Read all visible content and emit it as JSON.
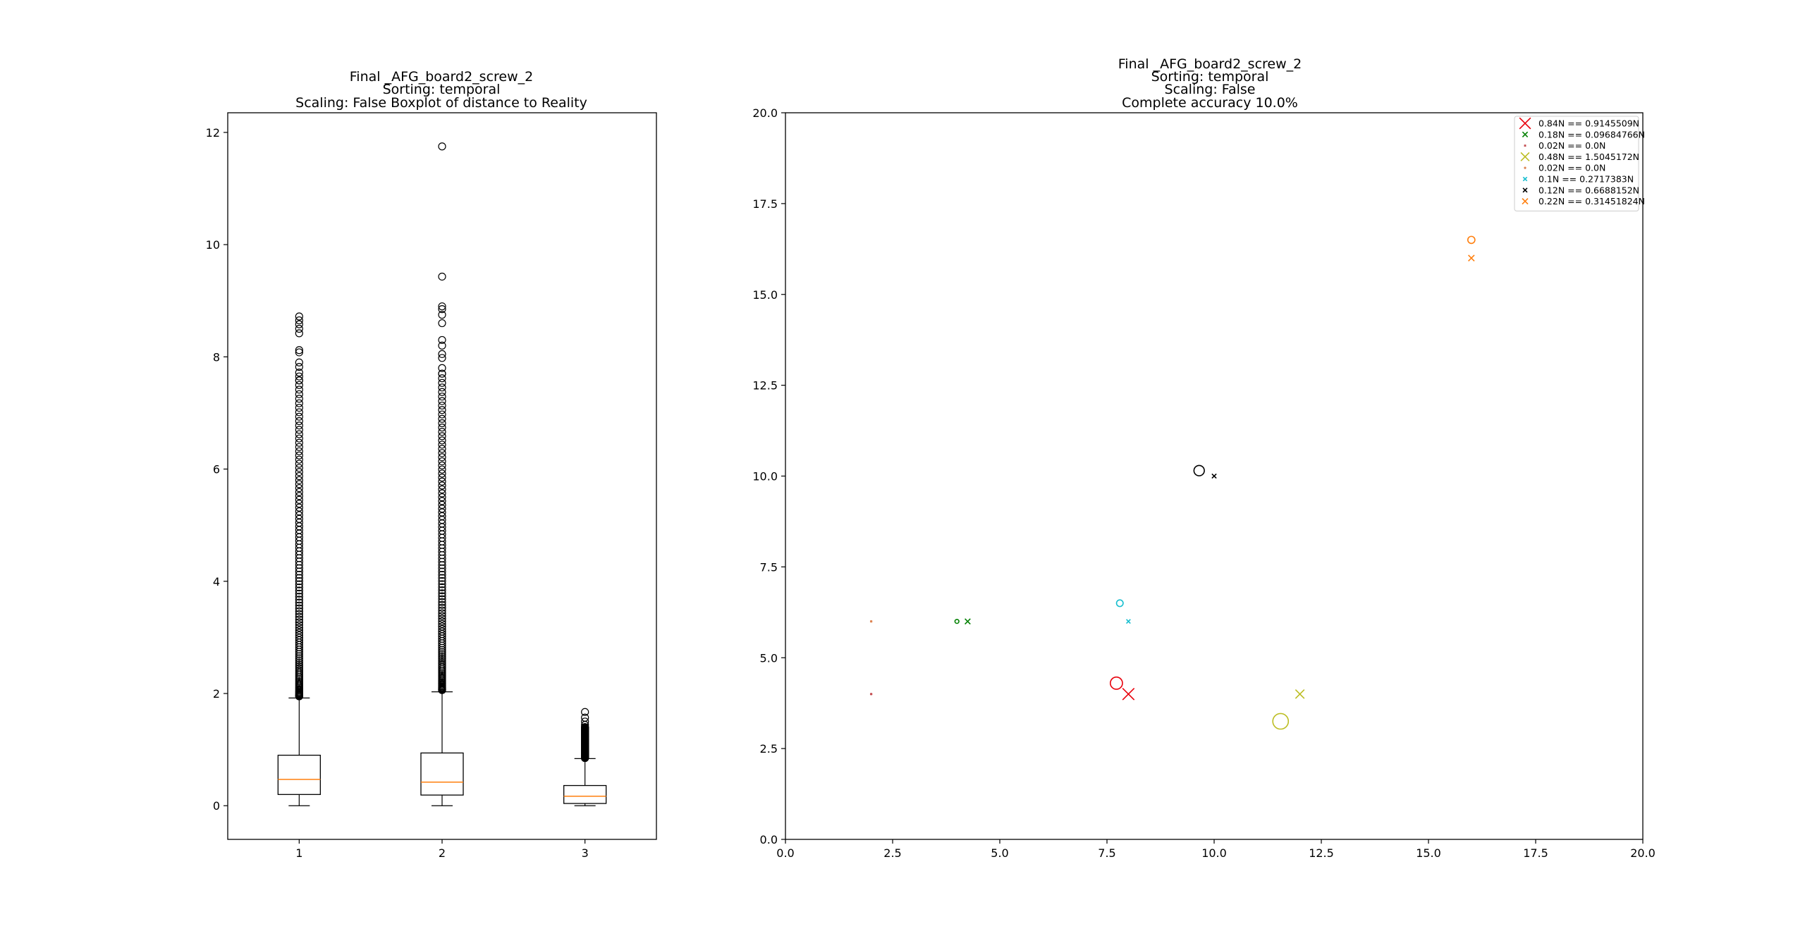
{
  "figure": {
    "background": "#ffffff"
  },
  "chart_data": [
    {
      "type": "boxplot",
      "title_lines": [
        "Final _AFG_board2_screw_2",
        "Sorting: temporal",
        "Scaling: False Boxplot of distance to Reality"
      ],
      "xlabel": "",
      "ylabel": "",
      "categories": [
        "1",
        "2",
        "3"
      ],
      "x_range": [
        0.5,
        3.5
      ],
      "ylim": [
        -0.6,
        12.35
      ],
      "x_ticks": [
        1,
        2,
        3
      ],
      "y_ticks": [
        0,
        2,
        4,
        6,
        8,
        10,
        12
      ],
      "median_color": "#ff7f0e",
      "box_color": "#000000",
      "grid": false,
      "boxes": [
        {
          "category": "1",
          "whisker_low": 0.0,
          "q1": 0.2,
          "median": 0.47,
          "q3": 0.9,
          "whisker_high": 1.92,
          "outliers_min": 1.95,
          "outliers_max": 8.72,
          "outliers_top": [
            8.72,
            8.65,
            8.58,
            8.5,
            8.42,
            8.12,
            8.08,
            7.9,
            7.82,
            7.72,
            7.65,
            7.58
          ]
        },
        {
          "category": "2",
          "whisker_low": 0.0,
          "q1": 0.19,
          "median": 0.42,
          "q3": 0.94,
          "whisker_high": 2.03,
          "outliers_min": 2.06,
          "outliers_max": 11.75,
          "outliers_top": [
            11.75,
            9.43,
            8.9,
            8.85,
            8.75,
            8.6,
            8.3,
            8.2,
            8.05,
            7.98,
            7.8,
            7.7
          ]
        },
        {
          "category": "3",
          "whisker_low": 0.0,
          "q1": 0.04,
          "median": 0.17,
          "q3": 0.36,
          "whisker_high": 0.84,
          "outliers_min": 0.85,
          "outliers_max": 1.67,
          "outliers_top": [
            1.67,
            1.57,
            1.5,
            1.44,
            1.4
          ]
        }
      ]
    },
    {
      "type": "scatter",
      "title_lines": [
        "Final _AFG_board2_screw_2",
        "Sorting: temporal",
        "Scaling: False",
        "Complete accuracy 10.0%"
      ],
      "xlabel": "",
      "ylabel": "",
      "xlim": [
        0.0,
        20.0
      ],
      "ylim": [
        0.0,
        20.0
      ],
      "x_ticks": [
        0.0,
        2.5,
        5.0,
        7.5,
        10.0,
        12.5,
        15.0,
        17.5,
        20.0
      ],
      "y_ticks": [
        0.0,
        2.5,
        5.0,
        7.5,
        10.0,
        12.5,
        15.0,
        17.5,
        20.0
      ],
      "x_tick_labels": [
        "0.0",
        "2.5",
        "5.0",
        "7.5",
        "10.0",
        "12.5",
        "15.0",
        "17.5",
        "20.0"
      ],
      "y_tick_labels": [
        "0.0",
        "2.5",
        "5.0",
        "7.5",
        "10.0",
        "12.5",
        "15.0",
        "17.5",
        "20.0"
      ],
      "grid": false,
      "legend_position": "top-right",
      "series": [
        {
          "name": "0.84N == 0.9145509N",
          "color": "#e8000b",
          "truth": {
            "x": 8.0,
            "y": 4.0,
            "marker": "x",
            "magnitude": 0.84
          },
          "predicted": {
            "x": 7.72,
            "y": 4.3,
            "marker": "o",
            "magnitude": 0.9145509
          }
        },
        {
          "name": "0.18N == 0.09684766N",
          "color": "#008000",
          "truth": {
            "x": 4.25,
            "y": 6.0,
            "marker": "x",
            "magnitude": 0.18
          },
          "predicted": {
            "x": 4.0,
            "y": 6.0,
            "marker": "o",
            "magnitude": 0.09684766
          }
        },
        {
          "name": "0.02N == 0.0N",
          "color": "#c44e52",
          "truth": {
            "x": 2.0,
            "y": 4.0,
            "marker": "x",
            "magnitude": 0.02
          },
          "predicted": {
            "x": 2.0,
            "y": 4.0,
            "marker": "o",
            "magnitude": 0.0
          }
        },
        {
          "name": "0.48N == 1.5045172N",
          "color": "#bcbd22",
          "truth": {
            "x": 12.0,
            "y": 4.0,
            "marker": "x",
            "magnitude": 0.48
          },
          "predicted": {
            "x": 11.55,
            "y": 3.25,
            "marker": "o",
            "magnitude": 1.5045172
          }
        },
        {
          "name": "0.02N == 0.0N",
          "color": "#dd8452",
          "truth": {
            "x": 2.0,
            "y": 6.0,
            "marker": "x",
            "magnitude": 0.02
          },
          "predicted": {
            "x": 2.0,
            "y": 6.0,
            "marker": "o",
            "magnitude": 0.0
          }
        },
        {
          "name": "0.1N == 0.2717383N",
          "color": "#17becf",
          "truth": {
            "x": 8.0,
            "y": 6.0,
            "marker": "x",
            "magnitude": 0.1
          },
          "predicted": {
            "x": 7.8,
            "y": 6.5,
            "marker": "o",
            "magnitude": 0.2717383
          }
        },
        {
          "name": "0.12N == 0.6688152N",
          "color": "#000000",
          "truth": {
            "x": 10.0,
            "y": 10.0,
            "marker": "x",
            "magnitude": 0.12
          },
          "predicted": {
            "x": 9.65,
            "y": 10.15,
            "marker": "o",
            "magnitude": 0.6688152
          }
        },
        {
          "name": "0.22N == 0.31451824N",
          "color": "#ff7f0e",
          "truth": {
            "x": 16.0,
            "y": 16.0,
            "marker": "x",
            "magnitude": 0.22
          },
          "predicted": {
            "x": 16.0,
            "y": 16.5,
            "marker": "o",
            "magnitude": 0.31451824
          }
        }
      ]
    }
  ]
}
